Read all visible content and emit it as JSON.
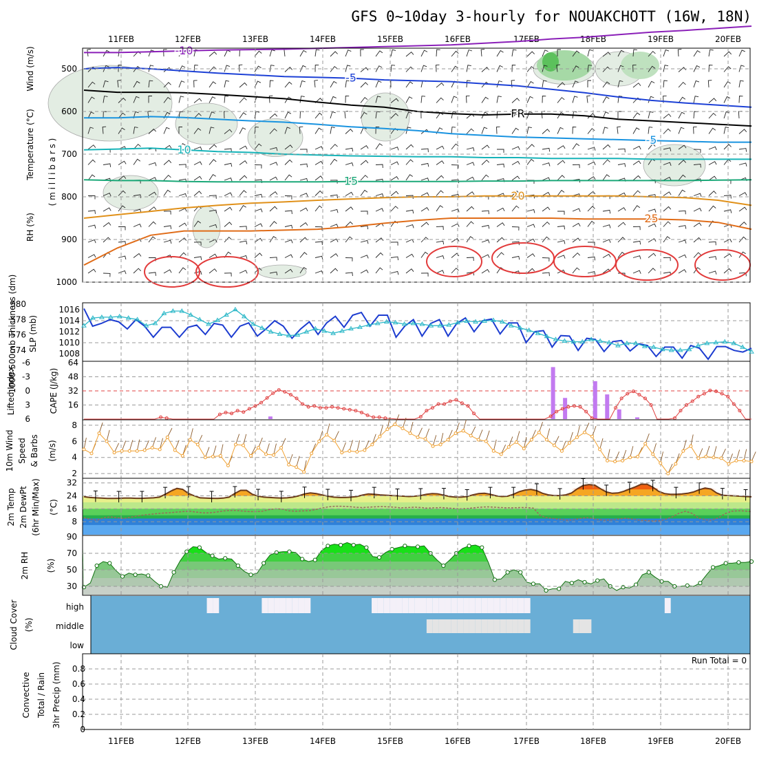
{
  "title": "GFS 0~10day 3-hourly for NOUAKCHOTT (16W, 18N)",
  "dates": [
    "11FEB",
    "12FEB",
    "13FEB",
    "14FEB",
    "15FEB",
    "16FEB",
    "17FEB",
    "18FEB",
    "19FEB",
    "20FEB"
  ],
  "chart_data": [
    {
      "type": "contour",
      "panel": "upper-air",
      "ylabel_parts": [
        "Wind (m/s)",
        "Temperature (°C)",
        "RH (%)"
      ],
      "ylabel_units": "( m i l l i b a r s )",
      "y_ticks": [
        "500",
        "600",
        "700",
        "800",
        "900",
        "1000"
      ],
      "ylim": [
        1000,
        450
      ],
      "temperature_isotherms": [
        {
          "label": "-10",
          "color": "#8a1fb8",
          "p": [
            462,
            462,
            460,
            458,
            456,
            455,
            454,
            452,
            450,
            448,
            446,
            444,
            440,
            436,
            430,
            426,
            420,
            414,
            410,
            405,
            400
          ]
        },
        {
          "label": "-5",
          "color": "#1c40d6",
          "p": [
            500,
            497,
            500,
            505,
            510,
            514,
            518,
            520,
            522,
            526,
            528,
            530,
            535,
            540,
            548,
            556,
            566,
            574,
            580,
            585,
            590
          ]
        },
        {
          "label": "FR",
          "color": "#000000",
          "p": [
            550,
            555,
            555,
            556,
            560,
            565,
            570,
            578,
            585,
            590,
            600,
            605,
            608,
            606,
            606,
            610,
            618,
            622,
            626,
            630,
            634
          ]
        },
        {
          "label": "-5",
          "color": "#1893e0",
          "p": [
            615,
            615,
            612,
            614,
            618,
            622,
            625,
            630,
            636,
            640,
            645,
            652,
            656,
            660,
            662,
            664,
            666,
            668,
            670,
            672,
            672
          ]
        },
        {
          "label": "10",
          "color": "#16b3b8",
          "p": [
            690,
            688,
            686,
            690,
            694,
            696,
            700,
            702,
            704,
            705,
            706,
            706,
            708,
            708,
            710,
            710,
            710,
            712,
            712,
            712,
            712
          ]
        },
        {
          "label": "15",
          "color": "#1aa878",
          "p": [
            760,
            762,
            762,
            764,
            765,
            765,
            765,
            765,
            764,
            764,
            764,
            764,
            763,
            763,
            762,
            762,
            762,
            762,
            762,
            761,
            760
          ]
        },
        {
          "label": "20",
          "color": "#e09018",
          "p": [
            850,
            842,
            834,
            826,
            820,
            815,
            812,
            808,
            805,
            802,
            800,
            800,
            798,
            798,
            798,
            798,
            798,
            800,
            802,
            808,
            820
          ]
        },
        {
          "label": "25",
          "color": "#e06c18",
          "p": [
            960,
            920,
            890,
            880,
            880,
            880,
            878,
            876,
            870,
            862,
            855,
            850,
            850,
            850,
            850,
            852,
            852,
            852,
            854,
            860,
            876
          ]
        }
      ]
    },
    {
      "type": "line",
      "panel": "thickness-slp",
      "ylabel_left": "1000-500mb Thickness (dm)",
      "ylabel_right": "SLP (mb)",
      "y_ticks_left": [
        "574",
        "576",
        "578",
        "580"
      ],
      "y_ticks_right": [
        "1008",
        "1010",
        "1012",
        "1014",
        "1016"
      ],
      "ylim_left": [
        573,
        580
      ],
      "ylim_right": [
        1007,
        1017
      ],
      "series": [
        {
          "name": "SLP",
          "color": "#1c3cd0",
          "values": [
            1016.2,
            1013,
            1013.5,
            1014.2,
            1013.8,
            1012.5,
            1014.2,
            1013,
            1011,
            1012.8,
            1012.8,
            1011,
            1012.8,
            1013.2,
            1011.5,
            1013.5,
            1013.2,
            1011,
            1013,
            1013.6,
            1011.2,
            1012.5,
            1014,
            1013,
            1010.8,
            1012.5,
            1013.8,
            1011.5,
            1013.6,
            1014.8,
            1012.8,
            1015,
            1015.5,
            1013,
            1015,
            1015,
            1011,
            1013,
            1014.2,
            1011.2,
            1013.5,
            1014.2,
            1011.2,
            1013.5,
            1014.5,
            1012,
            1014,
            1014.3,
            1011.6,
            1013.6,
            1013.6,
            1010,
            1012,
            1012.2,
            1009.2,
            1011.3,
            1011.2,
            1008.6,
            1010.8,
            1010.6,
            1008.4,
            1010.2,
            1010.4,
            1008.5,
            1009.8,
            1009.5,
            1007.5,
            1009.2,
            1009.2,
            1007.2,
            1009.5,
            1009,
            1007,
            1009.3,
            1009.3,
            1008.6,
            1008.3,
            1009
          ]
        },
        {
          "name": "Thickness",
          "color": "#2cb8c8",
          "values": [
            577.2,
            578.2,
            578.3,
            578.3,
            578.4,
            578.2,
            578.0,
            577.2,
            577.5,
            578.8,
            579.1,
            579.1,
            578.6,
            578.0,
            577.4,
            577.9,
            578.6,
            579.3,
            578.4,
            577.4,
            576.9,
            576.4,
            576.1,
            575.9,
            576.0,
            576.4,
            576.8,
            576.5,
            576.2,
            576.5,
            576.8,
            577.0,
            577.3,
            577.5,
            577.7,
            577.6,
            577.4,
            577.5,
            577.4,
            577.2,
            577.2,
            577.3,
            577.6,
            577.8,
            577.7,
            577.8,
            577.9,
            577.7,
            577.2,
            576.9,
            576.6,
            576.2,
            575.8,
            575.4,
            575.2,
            575.1,
            575.1,
            575.4,
            575.2,
            575.0,
            574.6,
            574.9,
            574.9,
            574.5,
            574.4,
            574.1,
            574.0,
            574.0,
            574.1,
            574.6,
            574.9,
            575.0,
            575.1,
            574.9,
            574.4,
            573.8
          ]
        }
      ]
    },
    {
      "type": "bar+line",
      "panel": "cape-li",
      "ylabel_left": "Lifted Index",
      "ylabel_right": "CAPE (J/kg)",
      "y_ticks_left": [
        "-6",
        "-3",
        "0",
        "3",
        "6"
      ],
      "y_ticks_right": [
        "16",
        "32",
        "48",
        "64"
      ],
      "ylim_left": [
        6,
        -6
      ],
      "ylim_right": [
        0,
        64
      ],
      "cape_bars": [
        {
          "i": 31,
          "value": 3
        },
        {
          "i": 78,
          "value": 59
        },
        {
          "i": 80,
          "value": 24
        },
        {
          "i": 85,
          "value": 43
        },
        {
          "i": 87,
          "value": 28
        },
        {
          "i": 89,
          "value": 11
        },
        {
          "i": 92,
          "value": 2
        }
      ],
      "lifted_index": [
        6,
        6,
        6,
        6,
        6,
        6,
        6,
        6,
        6,
        6,
        6,
        6,
        6,
        5.6,
        5.8,
        6,
        6,
        6,
        6,
        6,
        6,
        6,
        6,
        5,
        4.6,
        4.8,
        4.2,
        4.5,
        3.8,
        3.2,
        2.5,
        1.5,
        0.5,
        -0.2,
        0.2,
        0.8,
        1.6,
        2.8,
        3.4,
        3.2,
        3.6,
        3.6,
        3.4,
        3.6,
        3.8,
        4.0,
        4.2,
        4.6,
        5.2,
        5.6,
        5.6,
        5.8,
        5.9,
        6,
        6,
        6,
        6,
        5.5,
        4.2,
        3.6,
        2.8,
        2.8,
        2.2,
        1.9,
        2.6,
        3.2,
        4.8,
        6,
        6,
        6,
        6,
        6,
        6,
        6,
        6,
        6,
        6,
        6,
        6,
        5.4,
        4.4,
        3.8,
        3.4,
        3.2,
        3.4,
        4.4,
        5.8,
        6,
        6,
        6,
        3.6,
        1.6,
        0.6,
        0.1,
        0.8,
        1.6,
        3,
        6,
        6,
        6,
        5.8,
        4.2,
        3,
        2.2,
        1.2,
        0.6,
        -0.1,
        0.1,
        0.6,
        1.2,
        2.8,
        4.2,
        6,
        6
      ]
    },
    {
      "type": "line",
      "panel": "wind10m",
      "ylabel": "10m Wind Speed & Barbs (m/s)",
      "y_ticks": [
        "2",
        "4",
        "6",
        "8"
      ],
      "ylim": [
        1.5,
        8.5
      ],
      "values": [
        5.0,
        4.5,
        7.0,
        6.0,
        4.6,
        4.8,
        4.8,
        4.8,
        4.9,
        5.2,
        5.0,
        6.5,
        4.9,
        4.2,
        6.2,
        5.6,
        4.0,
        4.1,
        4.2,
        3.0,
        5.6,
        5.5,
        4.2,
        5.2,
        4.4,
        4.3,
        5.2,
        3.1,
        2.8,
        2.2,
        4.5,
        6.0,
        6.8,
        6.1,
        4.6,
        4.8,
        4.7,
        4.9,
        5.6,
        6.6,
        7.5,
        8.1,
        7.6,
        7.0,
        6.5,
        6.3,
        5.4,
        5.6,
        6.2,
        7.0,
        7.3,
        6.7,
        6.2,
        6.0,
        4.8,
        4.4,
        5.3,
        5.9,
        5.1,
        6.2,
        7.1,
        6.2,
        5.5,
        4.8,
        5.8,
        6.5,
        7.1,
        6.6,
        5.0,
        3.6,
        3.5,
        3.6,
        4.0,
        4.1,
        5.7,
        4.4,
        3.3,
        2.0,
        3.2,
        4.8,
        5.4,
        3.9,
        4.1,
        4.0,
        3.9,
        3.2,
        3.6,
        3.6,
        3.5
      ]
    },
    {
      "type": "area",
      "panel": "temp2m",
      "ylabel": "2m Temp 2m DewPt (6hr Min/Max) (°C)",
      "y_ticks": [
        "8",
        "16",
        "24",
        "32"
      ],
      "ylim": [
        0,
        34
      ],
      "temperature": [
        23.5,
        23.0,
        22.8,
        22.6,
        22.4,
        22.4,
        22.5,
        22.6,
        22.6,
        22.5,
        22.5,
        22.6,
        22.8,
        23.2,
        25.0,
        27.0,
        28.6,
        28.0,
        25.5,
        24.0,
        22.8,
        22.6,
        22.5,
        22.4,
        22.6,
        23.2,
        25.5,
        27.4,
        27.4,
        25.0,
        23.8,
        23.2,
        23.0,
        22.8,
        22.6,
        22.8,
        23.2,
        24.0,
        25.2,
        25.8,
        25.4,
        24.6,
        23.8,
        23.2,
        23.0,
        23.0,
        23.2,
        23.6,
        24.5,
        25.2,
        25.0,
        24.6,
        24.4,
        24.2,
        24.0,
        23.8,
        23.6,
        23.8,
        24.2,
        25.0,
        25.4,
        25.2,
        24.4,
        23.6,
        23.2,
        23.2,
        23.6,
        24.6,
        25.4,
        25.6,
        25.0,
        24.0,
        23.6,
        23.8,
        25.0,
        26.6,
        27.6,
        28.0,
        27.2,
        25.6,
        24.6,
        24.2,
        24.2,
        24.6,
        25.8,
        28.4,
        30.4,
        31.0,
        30.6,
        28.4,
        26.4,
        25.6,
        25.8,
        26.8,
        28.2,
        29.6,
        31.2,
        31.2,
        29.4,
        26.8,
        25.4,
        25.0,
        25.0,
        25.2,
        25.6,
        26.4,
        27.8,
        28.8,
        28.2,
        25.8,
        24.4,
        24.2,
        24.0,
        23.8,
        23.6,
        23.4
      ],
      "dewpoint": [
        10.5,
        9.5,
        9.0,
        10.5,
        11.0,
        10.5,
        10.0,
        10.8,
        11.5,
        12.2,
        12.6,
        13.0,
        13.4,
        13.6,
        14.0,
        14.3,
        14.5,
        14.0,
        13.5,
        13.5,
        14.0,
        14.6,
        15.0,
        15.0,
        14.6,
        14.3,
        14.3,
        14.5,
        15.5,
        16.0,
        15.8,
        14.8,
        14.5,
        14.7,
        14.8,
        15.5,
        16.5,
        17.2,
        17.6,
        17.6,
        17.4,
        17.0,
        16.8,
        17.0,
        17.2,
        17.4,
        17.2,
        17.0,
        16.6,
        16.8,
        17.0,
        16.8,
        16.4,
        16.6,
        16.8,
        16.5,
        16.2,
        16.0,
        16.2,
        16.6,
        17.0,
        17.2,
        17.0,
        16.8,
        16.6,
        16.6,
        16.8,
        16.8,
        16.4,
        12.0,
        10.5,
        10.0,
        9.5,
        9.0,
        9.2,
        10.0,
        10.6,
        10.0,
        9.2,
        9.0,
        9.2,
        9.8,
        10.2,
        9.6,
        9.0,
        8.8,
        8.5,
        8.6,
        9.5,
        11.0,
        13.2,
        14.5,
        13.2,
        10.2,
        9.2,
        9.0,
        10.5,
        13.0,
        14.5,
        14.8,
        14.6,
        14.2
      ]
    },
    {
      "type": "area",
      "panel": "rh2m",
      "ylabel": "2m RH (%)",
      "y_ticks": [
        "30",
        "50",
        "70",
        "90"
      ],
      "ylim": [
        20,
        90
      ],
      "values": [
        29,
        34,
        55,
        60,
        58,
        49,
        42,
        46,
        44,
        45,
        43,
        36,
        30,
        29,
        47,
        61,
        72,
        78,
        77,
        71,
        67,
        63,
        64,
        63,
        55,
        48,
        44,
        46,
        58,
        68,
        71,
        72,
        72,
        71,
        63,
        60,
        62,
        73,
        79,
        81,
        80,
        83,
        80,
        81,
        77,
        66,
        65,
        71,
        75,
        77,
        79,
        78,
        78,
        79,
        70,
        62,
        55,
        62,
        70,
        76,
        79,
        80,
        77,
        59,
        38,
        39,
        47,
        50,
        47,
        35,
        33,
        33,
        25,
        27,
        27,
        36,
        34,
        38,
        35,
        33,
        37,
        39,
        30,
        25,
        29,
        28,
        32,
        44,
        47,
        41,
        36,
        36,
        30,
        30,
        31,
        30,
        34,
        44,
        53,
        55,
        58,
        58,
        59,
        59,
        60
      ]
    },
    {
      "type": "heatmap",
      "panel": "cloud",
      "ylabel": "Cloud Cover (%)",
      "y_ticks": [
        "low",
        "middle",
        "high"
      ],
      "high_cloud_steps": [
        19,
        20,
        28,
        29,
        30,
        31,
        32,
        33,
        34,
        35,
        46,
        47,
        48,
        49,
        50,
        51,
        52,
        53,
        54,
        55,
        56,
        57,
        58,
        59,
        60,
        61,
        62,
        63,
        64,
        65,
        66,
        67,
        68,
        69,
        70,
        71,
        94
      ],
      "mid_cloud_steps": [
        55,
        56,
        57,
        58,
        59,
        60,
        61,
        62,
        63,
        64,
        65,
        66,
        67,
        68,
        69,
        70,
        71,
        79,
        80,
        81
      ]
    },
    {
      "type": "bar",
      "panel": "precip",
      "ylabel_parts": [
        "3hr Precip (mm)",
        "Total / Rain",
        "Convective"
      ],
      "y_ticks": [
        "0",
        "0.2",
        "0.4",
        "0.6",
        "0.8"
      ],
      "ylim": [
        0,
        1
      ],
      "run_total_label": "Run Total = 0",
      "values": []
    }
  ]
}
